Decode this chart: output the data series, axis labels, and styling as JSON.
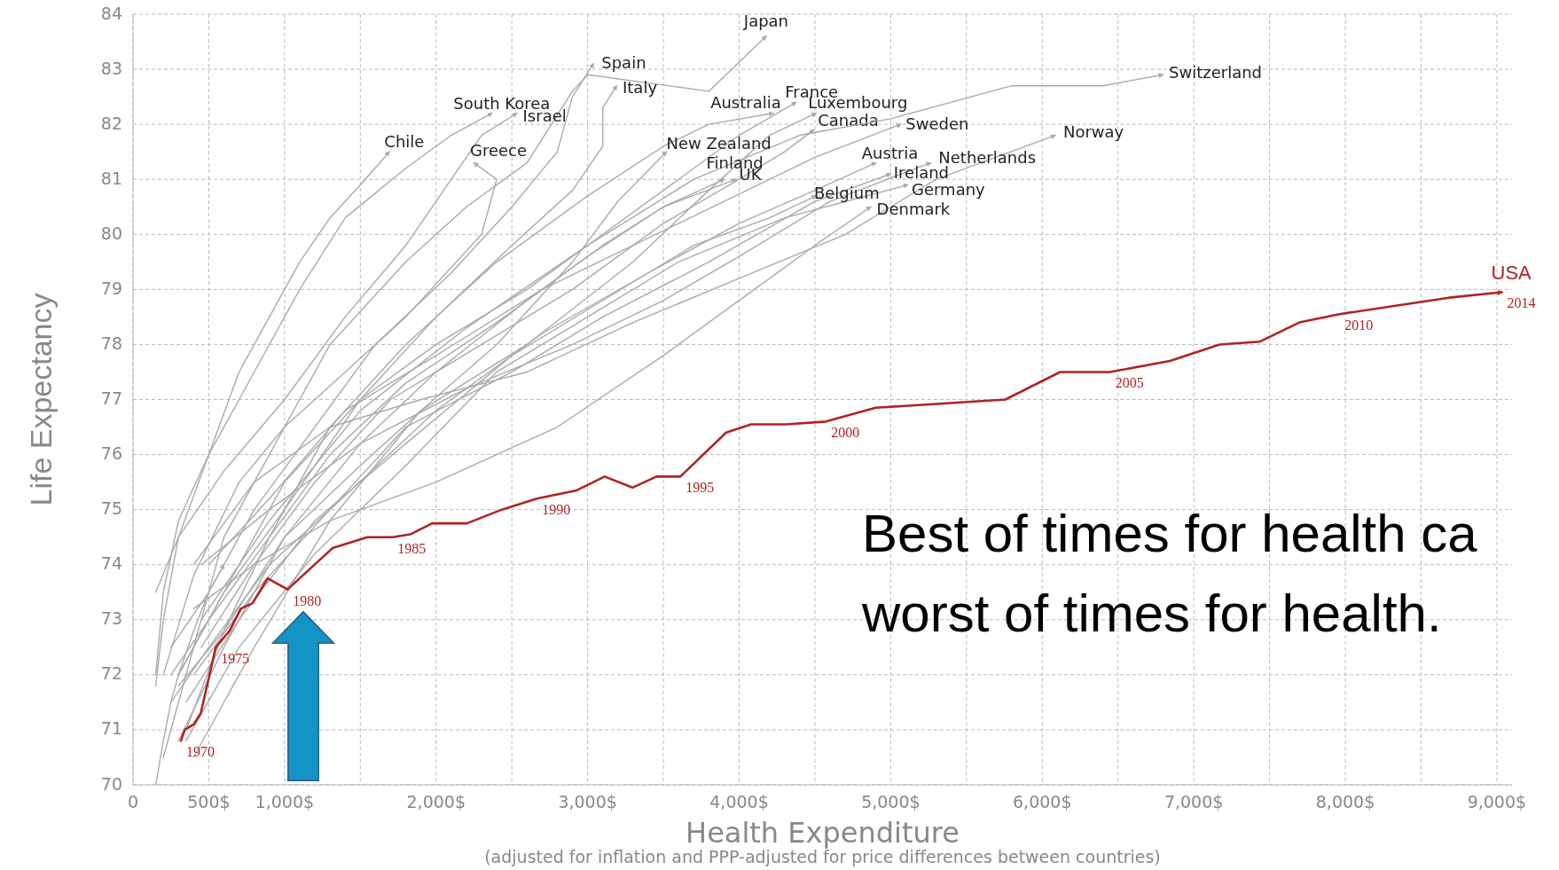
{
  "chart_data": {
    "type": "line",
    "xlabel": "Health Expenditure",
    "ylabel": "Life Expectancy",
    "xlim": [
      0,
      9100
    ],
    "ylim": [
      70,
      84
    ],
    "xticks": [
      {
        "value": 0,
        "label": "0"
      },
      {
        "value": 500,
        "label": "500$"
      },
      {
        "value": 1000,
        "label": "1,000$"
      },
      {
        "value": 1500,
        "label": null
      },
      {
        "value": 2000,
        "label": "2,000$"
      },
      {
        "value": 2500,
        "label": null
      },
      {
        "value": 3000,
        "label": "3,000$"
      },
      {
        "value": 3500,
        "label": null
      },
      {
        "value": 4000,
        "label": "4,000$"
      },
      {
        "value": 4500,
        "label": null
      },
      {
        "value": 5000,
        "label": "5,000$"
      },
      {
        "value": 5500,
        "label": null
      },
      {
        "value": 6000,
        "label": "6,000$"
      },
      {
        "value": 6500,
        "label": null
      },
      {
        "value": 7000,
        "label": "7,000$"
      },
      {
        "value": 7500,
        "label": null
      },
      {
        "value": 8000,
        "label": "8,000$"
      },
      {
        "value": 8500,
        "label": null
      },
      {
        "value": 9000,
        "label": "9,000$"
      }
    ],
    "yticks": [
      70,
      71,
      72,
      73,
      74,
      75,
      76,
      77,
      78,
      79,
      80,
      81,
      82,
      83,
      84
    ],
    "grid": true,
    "line_style": "solid",
    "series": [
      {
        "name": "Japan",
        "color": "#aaaaaa",
        "x": [
          200,
          400,
          600,
          900,
          1300,
          1800,
          2200,
          2600,
          2900,
          3000,
          3800,
          4178
        ],
        "values": [
          70.5,
          72.5,
          74.5,
          76,
          78,
          79.5,
          80.5,
          81.3,
          82.6,
          82.9,
          82.6,
          83.6
        ]
      },
      {
        "name": "Spain",
        "color": "#aaaaaa",
        "x": [
          250,
          500,
          800,
          1200,
          1600,
          2100,
          2500,
          2800,
          2900,
          3039
        ],
        "values": [
          72.5,
          73.5,
          75,
          76.5,
          78,
          79.3,
          80.5,
          81.5,
          82.5,
          83.1
        ]
      },
      {
        "name": "Italy",
        "color": "#aaaaaa",
        "x": [
          300,
          600,
          1000,
          1500,
          2000,
          2500,
          2900,
          3100,
          3100,
          3191
        ],
        "values": [
          72,
          73.5,
          75,
          77,
          78.5,
          79.8,
          80.8,
          81.6,
          82.3,
          82.7
        ]
      },
      {
        "name": "South Korea",
        "color": "#aaaaaa",
        "x": [
          150,
          200,
          300,
          500,
          800,
          1100,
          1400,
          1800,
          2100,
          2368
        ],
        "values": [
          72,
          73.5,
          74.8,
          76,
          77.5,
          79,
          80.3,
          81.2,
          81.8,
          82.2
        ]
      },
      {
        "name": "Israel",
        "color": "#aaaaaa",
        "x": [
          150,
          300,
          600,
          1000,
          1400,
          1800,
          2100,
          2300,
          2533
        ],
        "values": [
          73.5,
          74.5,
          75.7,
          77,
          78.5,
          79.8,
          81,
          81.8,
          82.2
        ]
      },
      {
        "name": "Chile",
        "color": "#aaaaaa",
        "x": [
          150,
          200,
          300,
          500,
          700,
          900,
          1100,
          1300,
          1500,
          1691
        ],
        "values": [
          71.8,
          73,
          74.5,
          76,
          77.5,
          78.5,
          79.5,
          80.3,
          80.9,
          81.5
        ]
      },
      {
        "name": "Greece",
        "color": "#aaaaaa",
        "x": [
          200,
          400,
          700,
          1000,
          1400,
          1800,
          2300,
          2400,
          2250
        ],
        "values": [
          72,
          73.8,
          75.5,
          76.5,
          77.5,
          78.5,
          80,
          81,
          81.3
        ]
      },
      {
        "name": "Australia",
        "color": "#aaaaaa",
        "x": [
          350,
          600,
          900,
          1300,
          1800,
          2400,
          3000,
          3500,
          3800,
          4224
        ],
        "values": [
          71,
          72.8,
          74.5,
          76.5,
          78,
          79.5,
          80.7,
          81.6,
          82,
          82.2
        ]
      },
      {
        "name": "France",
        "color": "#aaaaaa",
        "x": [
          300,
          600,
          1000,
          1500,
          2000,
          2600,
          3100,
          3600,
          4000,
          4375
        ],
        "values": [
          72,
          73.5,
          75.5,
          77,
          78,
          79,
          80,
          81,
          81.8,
          82.4
        ]
      },
      {
        "name": "Luxembourg",
        "color": "#aaaaaa",
        "x": [
          400,
          800,
          1300,
          1900,
          2600,
          3300,
          3800,
          4200,
          4507
        ],
        "values": [
          70.5,
          72.5,
          74.8,
          76.8,
          78,
          79.5,
          80.8,
          81.8,
          82.2
        ]
      },
      {
        "name": "Canada",
        "color": "#aaaaaa",
        "x": [
          450,
          800,
          1200,
          1700,
          2300,
          2900,
          3500,
          4000,
          4300,
          4493
        ],
        "values": [
          72.5,
          74,
          75.5,
          77,
          78,
          79,
          80.2,
          81,
          81.5,
          81.9
        ]
      },
      {
        "name": "Sweden",
        "color": "#aaaaaa",
        "x": [
          500,
          900,
          1400,
          2000,
          2700,
          3300,
          3900,
          4500,
          5066
        ],
        "values": [
          74,
          75.2,
          76.8,
          77.8,
          79,
          79.8,
          80.6,
          81.4,
          82
        ]
      },
      {
        "name": "Switzerland",
        "color": "#aaaaaa",
        "x": [
          450,
          900,
          1500,
          2200,
          3000,
          3700,
          4400,
          5000,
          5800,
          6400,
          6796
        ],
        "values": [
          73,
          74.8,
          76.8,
          78.3,
          79.8,
          81,
          81.8,
          82.1,
          82.7,
          82.7,
          82.9
        ]
      },
      {
        "name": "Norway",
        "color": "#aaaaaa",
        "x": [
          400,
          800,
          1300,
          1900,
          2600,
          3300,
          4000,
          4700,
          5300,
          6086
        ],
        "values": [
          74,
          75.5,
          76.5,
          77,
          77.5,
          78.4,
          79.2,
          80,
          81,
          81.8
        ]
      },
      {
        "name": "New Zealand",
        "color": "#aaaaaa",
        "x": [
          300,
          600,
          1000,
          1500,
          1900,
          2400,
          2900,
          3200,
          3520
        ],
        "values": [
          71.8,
          72.8,
          74.5,
          75.8,
          76.8,
          78,
          79.5,
          80.6,
          81.5
        ]
      },
      {
        "name": "Finland",
        "color": "#aaaaaa",
        "x": [
          300,
          600,
          1000,
          1500,
          2000,
          2600,
          3100,
          3500,
          3901
        ],
        "values": [
          70.8,
          72.5,
          74.5,
          76.2,
          77.5,
          78.8,
          79.8,
          80.5,
          81
        ]
      },
      {
        "name": "UK",
        "color": "#aaaaaa",
        "x": [
          250,
          500,
          900,
          1300,
          1800,
          2400,
          3000,
          3500,
          3980
        ],
        "values": [
          72,
          73,
          74.5,
          76,
          77.3,
          78.4,
          79.6,
          80.5,
          81
        ]
      },
      {
        "name": "Austria",
        "color": "#aaaaaa",
        "x": [
          400,
          800,
          1300,
          2000,
          2700,
          3400,
          4000,
          4500,
          4901
        ],
        "values": [
          72,
          73.5,
          75,
          76.8,
          78.2,
          79.3,
          80.2,
          80.8,
          81.3
        ]
      },
      {
        "name": "Netherlands",
        "color": "#aaaaaa",
        "x": [
          450,
          900,
          1500,
          2200,
          2900,
          3500,
          4000,
          4600,
          5263
        ],
        "values": [
          74,
          75,
          76.2,
          77.2,
          78,
          78.8,
          79.6,
          80.6,
          81.3
        ]
      },
      {
        "name": "Ireland",
        "color": "#aaaaaa",
        "x": [
          250,
          500,
          900,
          1300,
          1800,
          2500,
          3100,
          3800,
          4500,
          5000
        ],
        "values": [
          71.5,
          72.5,
          74,
          75,
          76.5,
          77.5,
          78.5,
          79.5,
          80.6,
          81.1
        ]
      },
      {
        "name": "Germany",
        "color": "#aaaaaa",
        "x": [
          350,
          700,
          1200,
          1800,
          2400,
          3000,
          3600,
          4300,
          5112
        ],
        "values": [
          70.8,
          72.5,
          74.2,
          75.8,
          77.5,
          78.5,
          79.5,
          80.3,
          80.9
        ]
      },
      {
        "name": "Belgium",
        "color": "#aaaaaa",
        "x": [
          350,
          700,
          1200,
          1800,
          2500,
          3100,
          3700,
          4200,
          4507
        ],
        "values": [
          71.5,
          73,
          74.8,
          76.2,
          77.8,
          78.8,
          79.8,
          80.3,
          80.7
        ]
      },
      {
        "name": "Denmark",
        "color": "#aaaaaa",
        "x": [
          400,
          800,
          1300,
          2000,
          2800,
          3500,
          4100,
          4500,
          4868
        ],
        "values": [
          73.2,
          74,
          74.8,
          75.5,
          76.5,
          77.8,
          79,
          79.8,
          80.5
        ]
      },
      {
        "name": null,
        "color": "#aaaaaa",
        "x": [
          150,
          200,
          250,
          300,
          400,
          500,
          600
        ],
        "values": [
          70,
          70.8,
          71.5,
          72,
          72.8,
          73.5,
          74
        ]
      },
      {
        "name": "USA",
        "color": "#b22222",
        "x": [
          316,
          342,
          401,
          447,
          546,
          638,
          711,
          789,
          888,
          1020,
          1316,
          1546,
          1711,
          1829,
          1974,
          2204,
          2434,
          2664,
          2928,
          3112,
          3296,
          3454,
          3612,
          3914,
          4079,
          4309,
          4572,
          4901,
          5757,
          6118,
          6447,
          6842,
          7171,
          7434,
          7697,
          7961,
          8322,
          8684,
          9033
        ],
        "values": [
          70.8,
          71,
          71.1,
          71.3,
          72.5,
          72.8,
          73.2,
          73.3,
          73.75,
          73.55,
          74.3,
          74.5,
          74.5,
          74.55,
          74.75,
          74.75,
          75,
          75.2,
          75.35,
          75.6,
          75.4,
          75.6,
          75.6,
          76.4,
          76.55,
          76.55,
          76.6,
          76.85,
          77,
          77.5,
          77.5,
          77.7,
          78,
          78.05,
          78.4,
          78.55,
          78.7,
          78.85,
          78.95
        ]
      }
    ],
    "annotations": [
      {
        "text": "1970",
        "x": 316,
        "y": 70.8
      },
      {
        "text": "1975",
        "x": 546,
        "y": 72.5
      },
      {
        "text": "1980",
        "x": 1020,
        "y": 73.55
      },
      {
        "text": "1985",
        "x": 1711,
        "y": 74.5
      },
      {
        "text": "1990",
        "x": 2664,
        "y": 75.2
      },
      {
        "text": "1995",
        "x": 3612,
        "y": 75.6
      },
      {
        "text": "2000",
        "x": 4572,
        "y": 76.6
      },
      {
        "text": "2005",
        "x": 6447,
        "y": 77.5
      },
      {
        "text": "2010",
        "x": 7961,
        "y": 78.55
      },
      {
        "text": "2014",
        "x": 9033,
        "y": 78.95
      },
      "Best of times for health ca",
      "worst of times for health.",
      "(adjusted for inflation and PPP-adjusted for price differences between countries)"
    ]
  }
}
